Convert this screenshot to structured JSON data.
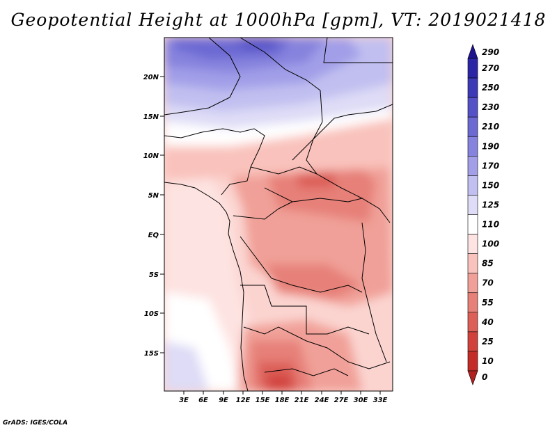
{
  "title": "Geopotential Height at 1000hPa [gpm], VT: 2019021418",
  "credit": "GrADS: IGES/COLA",
  "map": {
    "lat_labels": [
      "20N",
      "15N",
      "10N",
      "5N",
      "EQ",
      "5S",
      "10S",
      "15S"
    ],
    "lon_labels": [
      "3E",
      "6E",
      "9E",
      "12E",
      "15E",
      "18E",
      "21E",
      "24E",
      "27E",
      "30E",
      "33E"
    ]
  },
  "colorbar": {
    "labels": [
      "290",
      "270",
      "250",
      "230",
      "210",
      "190",
      "170",
      "150",
      "125",
      "110",
      "100",
      "85",
      "70",
      "55",
      "40",
      "25",
      "10",
      "0"
    ],
    "colors": [
      "#1e1490",
      "#2b26a6",
      "#3d3ab8",
      "#5551c6",
      "#6c69d3",
      "#8683de",
      "#a29fe8",
      "#c1bff0",
      "#dedcf6",
      "#ffffff",
      "#fde3e1",
      "#f9c2bc",
      "#f0a098",
      "#e68078",
      "#dc5f58",
      "#d2423c",
      "#c42c28",
      "#b0201e"
    ]
  }
}
